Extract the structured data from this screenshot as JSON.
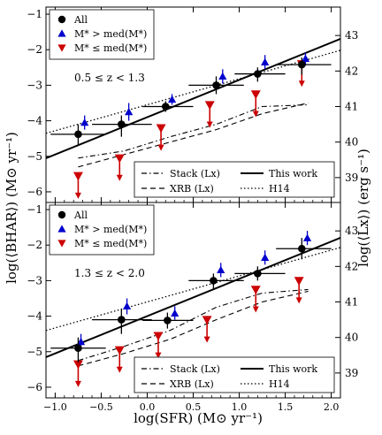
{
  "figure": {
    "xlabel": "log(SFR) (M⊙ yr⁻¹)",
    "ylabel": "log(⟨BHAR⟩) (M⊙ yr⁻¹)",
    "ylabel_right": "log(⟨Lx⟩) (erg s⁻¹)"
  },
  "colors": {
    "all": "#000000",
    "high_mass": "#0000cc",
    "low_mass": "#cc0000"
  },
  "legend_markers": [
    {
      "label": "All",
      "marker": "circle",
      "color": "#000000"
    },
    {
      "label": "M* > med(M*)",
      "marker": "triangle-up",
      "color": "#0000cc"
    },
    {
      "label": "M* ≤ med(M*)",
      "marker": "triangle-down",
      "color": "#cc0000"
    }
  ],
  "legend_lines": [
    {
      "label": "Stack (Lx)",
      "style": "dashdot"
    },
    {
      "label": "This work",
      "style": "solid"
    },
    {
      "label": "XRB (Lx)",
      "style": "dashed"
    },
    {
      "label": "H14",
      "style": "dotted"
    }
  ],
  "chart_data": [
    {
      "type": "scatter",
      "annotation": "0.5 ≤ z < 1.3",
      "xlim": [
        -1.1,
        2.1
      ],
      "ylim": [
        -6.3,
        -0.8
      ],
      "xticks": [
        -1.0,
        -0.5,
        0.0,
        0.5,
        1.0,
        1.5,
        2.0
      ],
      "yticks": [
        -6,
        -5,
        -4,
        -3,
        -2,
        -1
      ],
      "yticks_right": [
        39,
        40,
        41,
        42,
        43
      ],
      "right_axis_offset": 44.6,
      "all": [
        {
          "x": -0.75,
          "y": -4.38,
          "xlo": -1.05,
          "xhi": -0.45,
          "ylo": -4.7,
          "yhi": -4.1
        },
        {
          "x": -0.28,
          "y": -4.1,
          "xlo": -0.6,
          "xhi": 0.05,
          "ylo": -4.45,
          "yhi": -3.85
        },
        {
          "x": 0.2,
          "y": -3.6,
          "xlo": -0.05,
          "xhi": 0.5,
          "ylo": -3.75,
          "yhi": -3.45
        },
        {
          "x": 0.75,
          "y": -3.0,
          "xlo": 0.45,
          "xhi": 1.05,
          "ylo": -3.25,
          "yhi": -2.75
        },
        {
          "x": 1.2,
          "y": -2.68,
          "xlo": 0.95,
          "xhi": 1.5,
          "ylo": -2.9,
          "yhi": -2.5
        },
        {
          "x": 1.68,
          "y": -2.42,
          "xlo": 1.4,
          "xhi": 2.0,
          "ylo": -2.7,
          "yhi": -2.22
        }
      ],
      "high_mass": [
        {
          "x": -0.68,
          "y": -4.05,
          "ylo": -4.25,
          "yhi": -3.85
        },
        {
          "x": -0.2,
          "y": -3.75,
          "ylo": -4.0,
          "yhi": -3.5
        },
        {
          "x": 0.27,
          "y": -3.4,
          "ylo": -3.55,
          "yhi": -3.25
        },
        {
          "x": 0.82,
          "y": -2.75,
          "ylo": -2.95,
          "yhi": -2.55
        },
        {
          "x": 1.28,
          "y": -2.35,
          "ylo": -2.55,
          "yhi": -2.15
        },
        {
          "x": 1.72,
          "y": -2.25,
          "ylo": -2.45,
          "yhi": -2.08
        }
      ],
      "low_mass": [
        {
          "x": -0.75,
          "y": -5.55,
          "upper_limit": true
        },
        {
          "x": -0.3,
          "y": -5.05,
          "upper_limit": true
        },
        {
          "x": 0.15,
          "y": -4.2,
          "upper_limit": true
        },
        {
          "x": 0.68,
          "y": -3.55,
          "upper_limit": true
        },
        {
          "x": 1.18,
          "y": -3.25,
          "upper_limit": true
        },
        {
          "x": 1.68,
          "y": -2.4,
          "upper_limit": true
        }
      ],
      "this_work": {
        "slope": 1.05,
        "intercept": -3.9
      },
      "h14": {
        "slope": 0.73,
        "intercept": -3.55
      },
      "stack": [
        [
          -0.75,
          -5.05
        ],
        [
          -0.25,
          -4.85
        ],
        [
          0.25,
          -4.45
        ],
        [
          0.75,
          -4.1
        ],
        [
          1.25,
          -3.6
        ],
        [
          1.75,
          -3.55
        ]
      ],
      "xrb": [
        [
          -0.75,
          -5.3
        ],
        [
          -0.25,
          -4.95
        ],
        [
          0.25,
          -4.6
        ],
        [
          0.75,
          -4.25
        ],
        [
          1.25,
          -3.8
        ],
        [
          1.75,
          -3.5
        ]
      ]
    },
    {
      "type": "scatter",
      "annotation": "1.3 ≤ z < 2.0",
      "xlim": [
        -1.1,
        2.1
      ],
      "ylim": [
        -6.3,
        -0.8
      ],
      "xticks": [
        -1.0,
        -0.5,
        0.0,
        0.5,
        1.0,
        1.5,
        2.0
      ],
      "xticklabels": [
        "−1.0",
        "−0.5",
        "0.0",
        "0.5",
        "1.0",
        "1.5",
        "2.0"
      ],
      "yticks": [
        -6,
        -5,
        -4,
        -3,
        -2,
        -1
      ],
      "yticks_right": [
        39,
        40,
        41,
        42,
        43
      ],
      "right_axis_offset": 44.6,
      "all": [
        {
          "x": -0.75,
          "y": -4.9,
          "xlo": -1.05,
          "xhi": -0.45,
          "ylo": -5.3,
          "yhi": -4.6
        },
        {
          "x": -0.28,
          "y": -4.1,
          "xlo": -0.6,
          "xhi": 0.05,
          "ylo": -4.5,
          "yhi": -3.8
        },
        {
          "x": 0.22,
          "y": -4.12,
          "xlo": -0.05,
          "xhi": 0.5,
          "ylo": -4.35,
          "yhi": -3.9
        },
        {
          "x": 0.72,
          "y": -3.0,
          "xlo": 0.45,
          "xhi": 1.05,
          "ylo": -3.25,
          "yhi": -2.8
        },
        {
          "x": 1.2,
          "y": -2.8,
          "xlo": 0.95,
          "xhi": 1.5,
          "ylo": -3.0,
          "yhi": -2.6
        },
        {
          "x": 1.68,
          "y": -2.1,
          "xlo": 1.4,
          "xhi": 2.0,
          "ylo": -2.4,
          "yhi": -1.8
        }
      ],
      "high_mass": [
        {
          "x": -0.72,
          "y": -4.72,
          "ylo": -4.95,
          "yhi": -4.5
        },
        {
          "x": -0.22,
          "y": -3.72,
          "ylo": -3.95,
          "yhi": -3.5
        },
        {
          "x": 0.3,
          "y": -3.92,
          "ylo": -4.1,
          "yhi": -3.72
        },
        {
          "x": 0.8,
          "y": -2.7,
          "ylo": -2.9,
          "yhi": -2.5
        },
        {
          "x": 1.28,
          "y": -2.35,
          "ylo": -2.55,
          "yhi": -2.15
        },
        {
          "x": 1.74,
          "y": -1.8,
          "ylo": -2.0,
          "yhi": -1.6
        }
      ],
      "low_mass": [
        {
          "x": -0.75,
          "y": -5.35,
          "upper_limit": true
        },
        {
          "x": -0.3,
          "y": -4.95,
          "upper_limit": true
        },
        {
          "x": 0.12,
          "y": -4.55,
          "upper_limit": true
        },
        {
          "x": 0.65,
          "y": -4.1,
          "upper_limit": true
        },
        {
          "x": 1.18,
          "y": -3.25,
          "upper_limit": true
        },
        {
          "x": 1.65,
          "y": -3.0,
          "upper_limit": true
        }
      ],
      "this_work": {
        "slope": 1.05,
        "intercept": -4.0
      },
      "h14": {
        "slope": 0.73,
        "intercept": -3.6
      },
      "stack": [
        [
          -0.75,
          -5.25
        ],
        [
          -0.25,
          -4.85
        ],
        [
          0.25,
          -4.4
        ],
        [
          0.75,
          -3.75
        ],
        [
          1.25,
          -3.35
        ],
        [
          1.75,
          -3.25
        ]
      ],
      "xrb": [
        [
          -0.75,
          -5.4
        ],
        [
          -0.25,
          -5.05
        ],
        [
          0.25,
          -4.65
        ],
        [
          0.75,
          -4.1
        ],
        [
          1.25,
          -3.6
        ],
        [
          1.75,
          -3.3
        ]
      ]
    }
  ]
}
